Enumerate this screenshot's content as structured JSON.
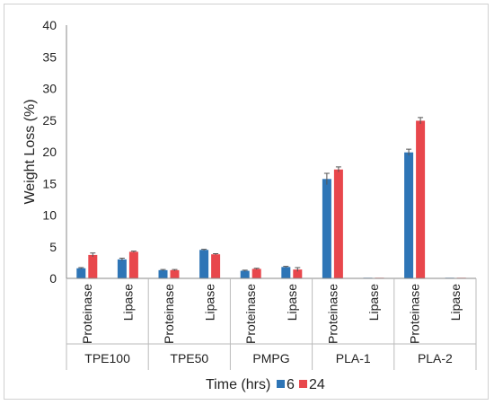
{
  "chart_data": {
    "type": "bar",
    "ylabel": "Weight Loss (%)",
    "xlabel": "Time (hrs)",
    "ylim": [
      0,
      40
    ],
    "yticks": [
      0,
      5,
      10,
      15,
      20,
      25,
      30,
      35,
      40
    ],
    "grid": false,
    "legend_position": "bottom",
    "groups": [
      "TPE100",
      "TPE50",
      "PMPG",
      "PLA-1",
      "PLA-2"
    ],
    "categories": [
      "Proteinase",
      "Lipase",
      "Proteinase",
      "Lipase",
      "Proteinase",
      "Lipase",
      "Proteinase",
      "Lipase",
      "Proteinase",
      "Lipase"
    ],
    "series": [
      {
        "name": "6",
        "color": "#2e75b6",
        "values": [
          1.6,
          3.0,
          1.3,
          4.5,
          1.2,
          1.8,
          15.7,
          0.1,
          19.9,
          0.1
        ],
        "errors": [
          0.1,
          0.2,
          0.1,
          0.1,
          0.1,
          0.1,
          0.9,
          0.0,
          0.5,
          0.0
        ]
      },
      {
        "name": "24",
        "color": "#e8474c",
        "values": [
          3.7,
          4.2,
          1.3,
          3.8,
          1.5,
          1.4,
          17.2,
          0.1,
          24.9,
          0.1
        ],
        "errors": [
          0.3,
          0.1,
          0.1,
          0.1,
          0.1,
          0.3,
          0.4,
          0.0,
          0.5,
          0.0
        ]
      }
    ]
  }
}
